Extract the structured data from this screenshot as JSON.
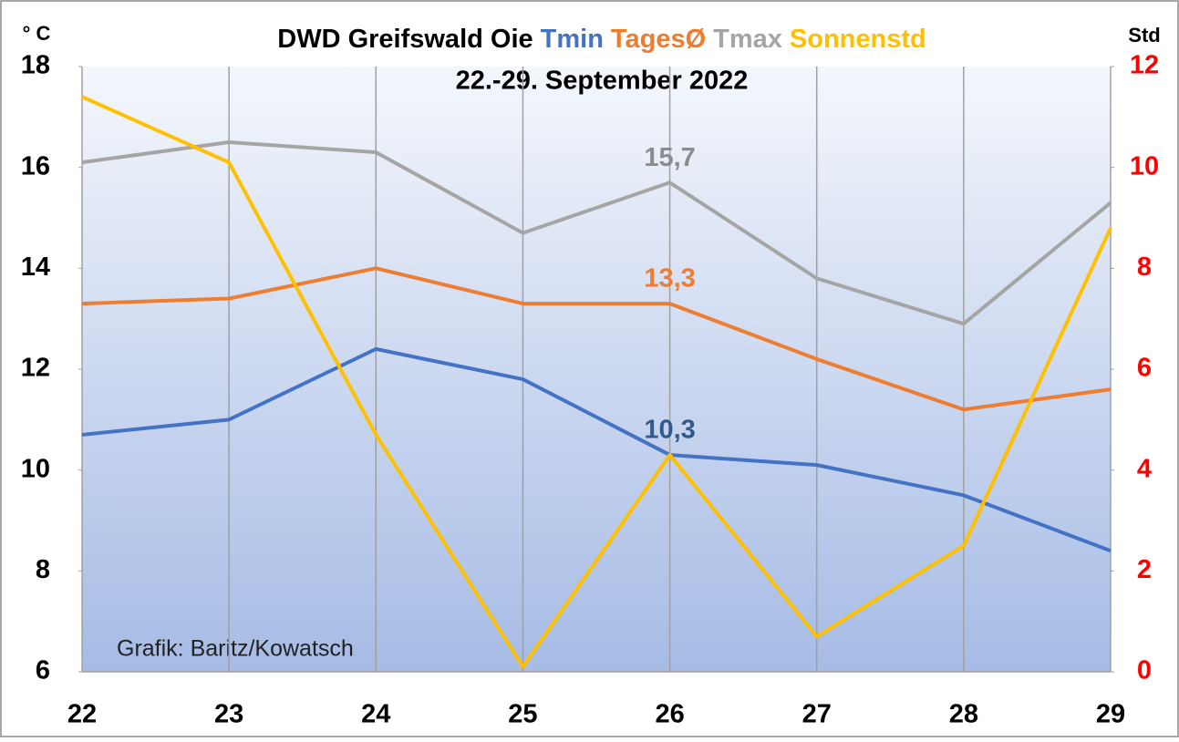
{
  "chart_data": {
    "type": "line",
    "title": "DWD Greifswald Oie",
    "subtitle": "22.-29. September 2022",
    "ylabel": "° C",
    "y2label": "Std",
    "annotation": "Grafik: Baritz/Kowatsch",
    "categories": [
      "22",
      "23",
      "24",
      "25",
      "26",
      "27",
      "28",
      "29"
    ],
    "ylim": [
      6,
      18
    ],
    "yticks": [
      6,
      8,
      10,
      12,
      14,
      16,
      18
    ],
    "y2lim": [
      0,
      12
    ],
    "y2ticks": [
      0,
      2,
      4,
      6,
      8,
      10,
      12
    ],
    "y2tick_color": "#ff0000",
    "grid": true,
    "series": [
      {
        "name": "Tmin",
        "color": "#4472c4",
        "label_color": "#2f5a8a",
        "values": [
          10.7,
          11.0,
          12.4,
          11.8,
          10.3,
          10.1,
          9.5,
          8.4
        ],
        "value_labels": [
          null,
          null,
          null,
          null,
          "10,3",
          null,
          null,
          null
        ]
      },
      {
        "name": "TagesØ",
        "color": "#ed7d31",
        "values": [
          13.3,
          13.4,
          14.0,
          13.3,
          13.3,
          12.2,
          11.2,
          11.6
        ],
        "value_labels": [
          null,
          null,
          null,
          null,
          "13,3",
          null,
          null,
          null
        ]
      },
      {
        "name": "Tmax",
        "color": "#a5a5a5",
        "label_color": "#8c8c8c",
        "values": [
          16.1,
          16.5,
          16.3,
          14.7,
          15.7,
          13.8,
          12.9,
          15.3
        ],
        "value_labels": [
          null,
          null,
          null,
          null,
          "15,7",
          null,
          null,
          null
        ]
      },
      {
        "name": "Sonnenstd",
        "color": "#ffc000",
        "axis": "y2",
        "values": [
          11.4,
          10.1,
          4.7,
          0.1,
          4.3,
          0.7,
          2.5,
          8.8
        ]
      }
    ]
  }
}
